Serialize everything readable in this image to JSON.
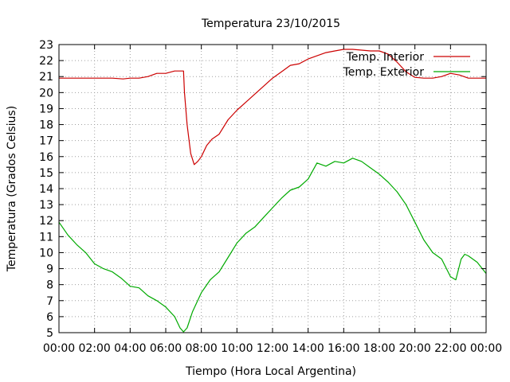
{
  "chart_data": {
    "type": "line",
    "title": "Temperatura 23/10/2015",
    "xlabel": "Tiempo (Hora Local Argentina)",
    "ylabel": "Temperatura (Grados Celsius)",
    "x_unit": "hour of day",
    "xlim": [
      0,
      24
    ],
    "ylim": [
      5,
      23
    ],
    "x_ticks": [
      0,
      2,
      4,
      6,
      8,
      10,
      12,
      14,
      16,
      18,
      20,
      22,
      24
    ],
    "x_tick_labels": [
      "00:00",
      "02:00",
      "04:00",
      "06:00",
      "08:00",
      "10:00",
      "12:00",
      "14:00",
      "16:00",
      "18:00",
      "20:00",
      "22:00",
      "00:00"
    ],
    "y_ticks": [
      5,
      6,
      7,
      8,
      9,
      10,
      11,
      12,
      13,
      14,
      15,
      16,
      17,
      18,
      19,
      20,
      21,
      22,
      23
    ],
    "grid": true,
    "legend_position": "top-right",
    "series": [
      {
        "name": "Temp. Interior",
        "color": "#cc0000",
        "points": [
          [
            0,
            20.9
          ],
          [
            1,
            20.9
          ],
          [
            2,
            20.9
          ],
          [
            3,
            20.9
          ],
          [
            3.6,
            20.85
          ],
          [
            4,
            20.9
          ],
          [
            4.5,
            20.9
          ],
          [
            5,
            21.0
          ],
          [
            5.5,
            21.2
          ],
          [
            6,
            21.2
          ],
          [
            6.5,
            21.35
          ],
          [
            7,
            21.35
          ],
          [
            7.05,
            20.0
          ],
          [
            7.2,
            18.0
          ],
          [
            7.4,
            16.2
          ],
          [
            7.6,
            15.5
          ],
          [
            7.8,
            15.7
          ],
          [
            8,
            16.0
          ],
          [
            8.3,
            16.7
          ],
          [
            8.6,
            17.1
          ],
          [
            9,
            17.4
          ],
          [
            9.5,
            18.3
          ],
          [
            10,
            18.9
          ],
          [
            10.5,
            19.4
          ],
          [
            11,
            19.9
          ],
          [
            11.5,
            20.4
          ],
          [
            12,
            20.9
          ],
          [
            12.5,
            21.3
          ],
          [
            13,
            21.7
          ],
          [
            13.5,
            21.8
          ],
          [
            14,
            22.1
          ],
          [
            14.5,
            22.3
          ],
          [
            15,
            22.5
          ],
          [
            15.5,
            22.6
          ],
          [
            16,
            22.7
          ],
          [
            16.5,
            22.7
          ],
          [
            17,
            22.65
          ],
          [
            17.5,
            22.6
          ],
          [
            18,
            22.6
          ],
          [
            18.5,
            22.4
          ],
          [
            19,
            21.9
          ],
          [
            19.5,
            21.3
          ],
          [
            20,
            20.95
          ],
          [
            20.5,
            20.9
          ],
          [
            21,
            20.9
          ],
          [
            21.5,
            21.0
          ],
          [
            22,
            21.2
          ],
          [
            22.5,
            21.1
          ],
          [
            23,
            20.9
          ],
          [
            24,
            20.9
          ]
        ]
      },
      {
        "name": "Temp. Exterior",
        "color": "#00aa00",
        "points": [
          [
            0,
            11.9
          ],
          [
            0.5,
            11.1
          ],
          [
            1,
            10.5
          ],
          [
            1.5,
            10.0
          ],
          [
            2,
            9.3
          ],
          [
            2.5,
            9.0
          ],
          [
            3,
            8.8
          ],
          [
            3.5,
            8.4
          ],
          [
            4,
            7.9
          ],
          [
            4.5,
            7.8
          ],
          [
            5,
            7.3
          ],
          [
            5.5,
            7.0
          ],
          [
            6,
            6.6
          ],
          [
            6.5,
            6.0
          ],
          [
            6.8,
            5.3
          ],
          [
            7,
            5.05
          ],
          [
            7.2,
            5.3
          ],
          [
            7.5,
            6.3
          ],
          [
            8,
            7.5
          ],
          [
            8.5,
            8.3
          ],
          [
            9,
            8.8
          ],
          [
            9.5,
            9.7
          ],
          [
            10,
            10.6
          ],
          [
            10.5,
            11.2
          ],
          [
            11,
            11.6
          ],
          [
            11.5,
            12.2
          ],
          [
            12,
            12.8
          ],
          [
            12.5,
            13.4
          ],
          [
            13,
            13.9
          ],
          [
            13.5,
            14.1
          ],
          [
            14,
            14.6
          ],
          [
            14.5,
            15.6
          ],
          [
            15,
            15.4
          ],
          [
            15.5,
            15.7
          ],
          [
            16,
            15.6
          ],
          [
            16.5,
            15.9
          ],
          [
            17,
            15.7
          ],
          [
            17.5,
            15.3
          ],
          [
            18,
            14.9
          ],
          [
            18.5,
            14.4
          ],
          [
            19,
            13.8
          ],
          [
            19.5,
            13.0
          ],
          [
            20,
            11.9
          ],
          [
            20.5,
            10.8
          ],
          [
            21,
            10.0
          ],
          [
            21.5,
            9.6
          ],
          [
            22,
            8.5
          ],
          [
            22.3,
            8.3
          ],
          [
            22.6,
            9.6
          ],
          [
            22.8,
            9.9
          ],
          [
            23,
            9.8
          ],
          [
            23.5,
            9.4
          ],
          [
            24,
            8.7
          ]
        ]
      }
    ]
  }
}
